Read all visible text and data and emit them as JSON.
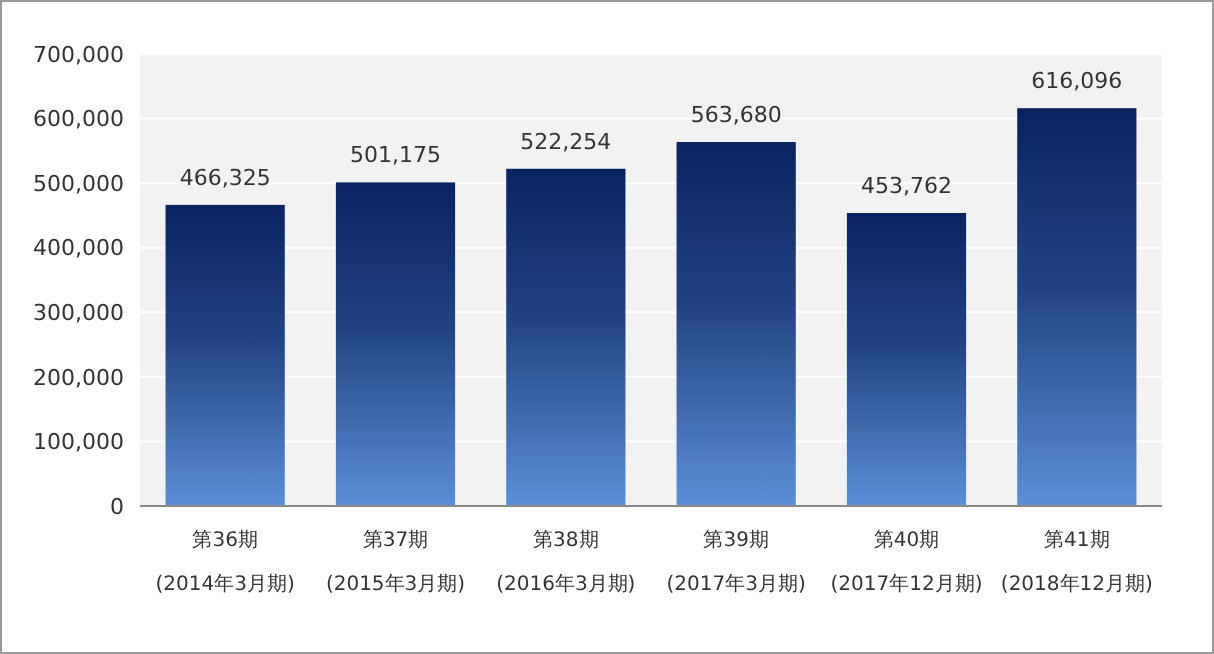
{
  "chart_data": {
    "type": "bar",
    "categories": [
      "第36期\n(2014年3月期)",
      "第37期\n(2015年3月期)",
      "第38期\n(2016年3月期)",
      "第39期\n(2017年3月期)",
      "第40期\n(2017年12月期)",
      "第41期\n(2018年12月期)"
    ],
    "values": [
      466325,
      501175,
      522254,
      563680,
      453762,
      616096
    ],
    "color": "#0a2360",
    "ylim": [
      0,
      700000
    ],
    "yticks": [
      {
        "value": 0,
        "label": "0"
      },
      {
        "value": 100000,
        "label": "100,000"
      },
      {
        "value": 200000,
        "label": "200,000"
      },
      {
        "value": 300000,
        "label": "300,000"
      },
      {
        "value": 400000,
        "label": "400,000"
      },
      {
        "value": 500000,
        "label": "500,000"
      },
      {
        "value": 600000,
        "label": "600,000"
      },
      {
        "value": 700000,
        "label": "700,000"
      }
    ],
    "value_labels": [
      "466,325",
      "501,175",
      "522,254",
      "563,680",
      "453,762",
      "616,096"
    ],
    "grid": "y"
  }
}
